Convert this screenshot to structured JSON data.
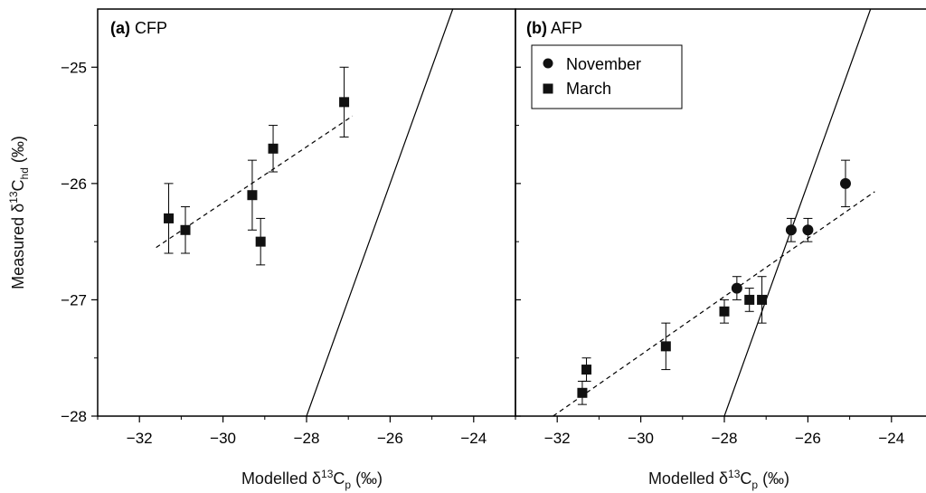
{
  "chart_data": {
    "type": "scatter",
    "y_axis": {
      "label_main": "Measured  δ",
      "label_sup": "13",
      "label_c": "C",
      "label_sub": "hd",
      "label_unit": " (‰)",
      "range": [
        -28,
        -24.5
      ],
      "ticks": [
        -28,
        -27,
        -26,
        -25
      ],
      "tick_labels": [
        "−28",
        "−27",
        "−26",
        "−25"
      ]
    },
    "x_ticks": [
      -32,
      -30,
      -28,
      -26,
      -24
    ],
    "x_tick_labels": [
      "−32",
      "−30",
      "−28",
      "−26",
      "−24"
    ],
    "x_label_main": "Modelled δ",
    "x_label_sup": "13",
    "x_label_c": "C",
    "x_label_sub": "p",
    "x_label_unit": " (‰)",
    "panels": [
      {
        "label_bold": "(a)",
        "label_text": " CFP",
        "xlim": [
          -33,
          -23
        ],
        "series": [
          {
            "name": "March",
            "marker": "square",
            "points": [
              {
                "x": -31.3,
                "y": -26.3,
                "err": 0.3
              },
              {
                "x": -30.9,
                "y": -26.4,
                "err": 0.2
              },
              {
                "x": -29.3,
                "y": -26.1,
                "err": 0.3
              },
              {
                "x": -29.1,
                "y": -26.5,
                "err": 0.2
              },
              {
                "x": -28.8,
                "y": -25.7,
                "err": 0.2
              },
              {
                "x": -27.1,
                "y": -25.3,
                "err": 0.3
              }
            ]
          }
        ],
        "regression": {
          "x1": -31.6,
          "y1": -26.55,
          "x2": -26.9,
          "y2": -25.42
        },
        "line_1to1": {
          "x1": -28,
          "y1": -28,
          "x2": -24.5,
          "y2": -24.5
        }
      },
      {
        "label_bold": "(b)",
        "label_text": " AFP",
        "xlim": [
          -33,
          -23
        ],
        "legend": [
          {
            "name": "November",
            "marker": "circle"
          },
          {
            "name": "March",
            "marker": "square"
          }
        ],
        "series": [
          {
            "name": "November",
            "marker": "circle",
            "points": [
              {
                "x": -27.7,
                "y": -26.9,
                "err": 0.1
              },
              {
                "x": -26.4,
                "y": -26.4,
                "err": 0.1
              },
              {
                "x": -26.0,
                "y": -26.4,
                "err": 0.1
              },
              {
                "x": -25.1,
                "y": -26.0,
                "err": 0.2
              }
            ]
          },
          {
            "name": "March",
            "marker": "square",
            "points": [
              {
                "x": -31.4,
                "y": -27.8,
                "err": 0.1
              },
              {
                "x": -31.3,
                "y": -27.6,
                "err": 0.1
              },
              {
                "x": -29.4,
                "y": -27.4,
                "err": 0.2
              },
              {
                "x": -28.0,
                "y": -27.1,
                "err": 0.1
              },
              {
                "x": -27.4,
                "y": -27.0,
                "err": 0.1
              },
              {
                "x": -27.1,
                "y": -27.0,
                "err": 0.2
              }
            ]
          }
        ],
        "regression": {
          "x1": -32.1,
          "y1": -28.0,
          "x2": -24.4,
          "y2": -26.07
        },
        "line_1to1": {
          "x1": -28,
          "y1": -28,
          "x2": -24.5,
          "y2": -24.5
        }
      }
    ]
  }
}
